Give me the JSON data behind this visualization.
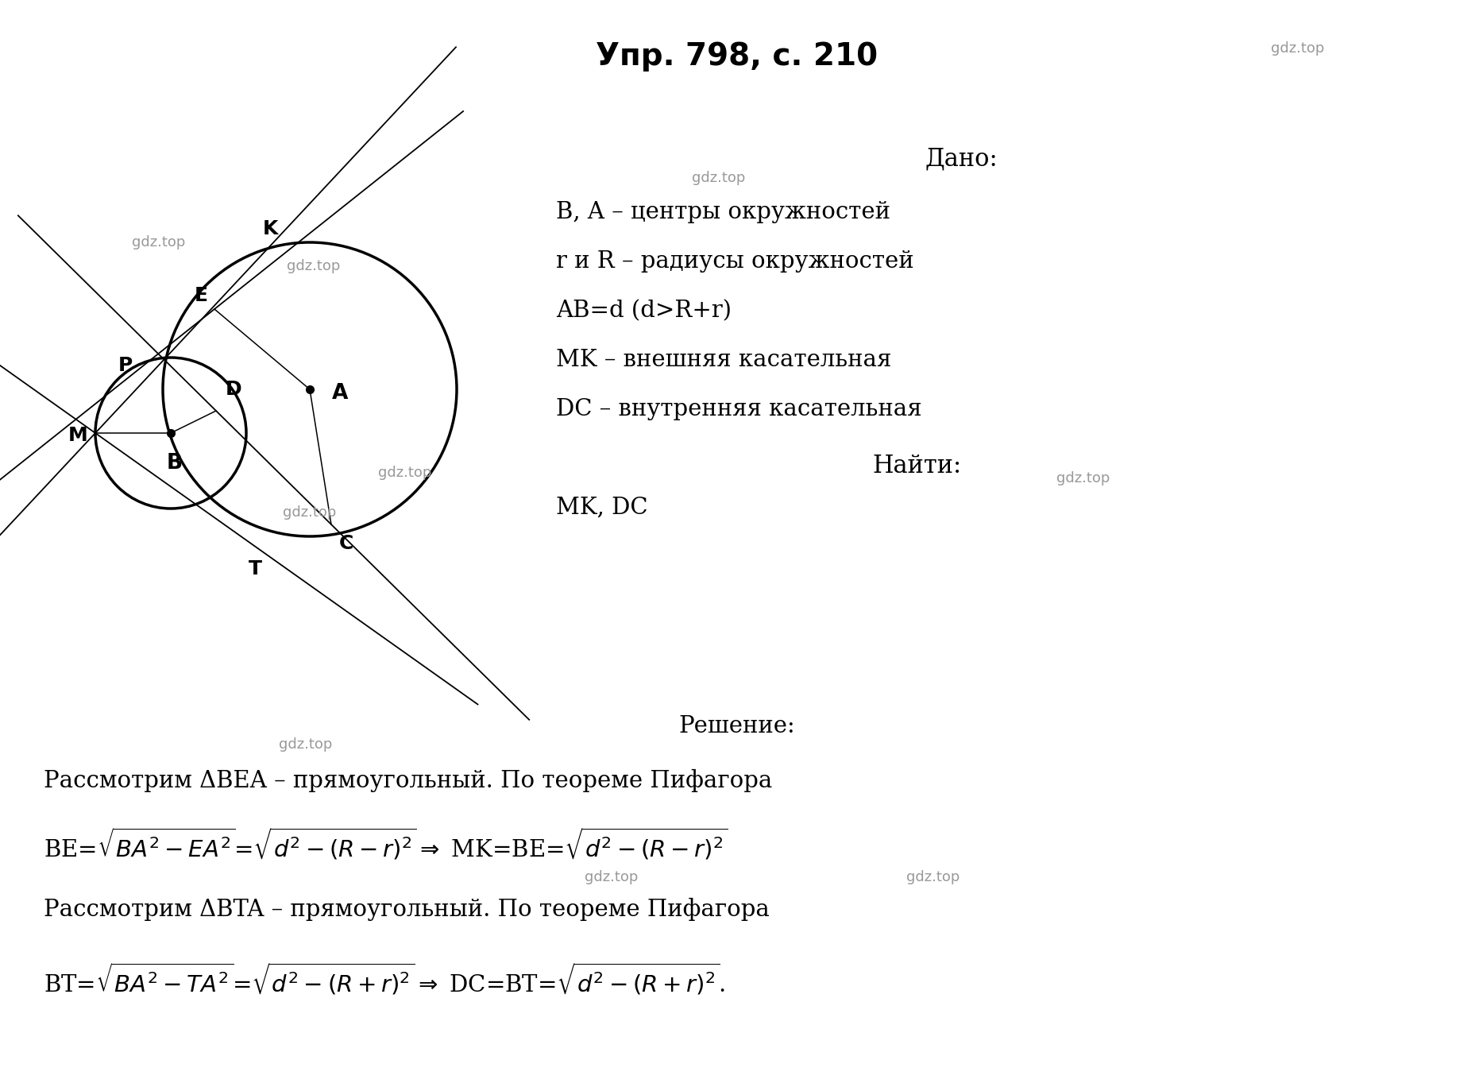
{
  "title": "Упр. 798, с. 210",
  "title_fontsize": 28,
  "watermark": "gdz.top",
  "watermark_color": "#999999",
  "watermark_fontsize": 13,
  "bg_color": "#ffffff",
  "text_color": "#000000",
  "dado_title": "Дано:",
  "dado_lines": [
    "B, A – центры окружностей",
    "r и R – радиусы окружностей",
    "AB=d (d>R+r)",
    "MK – внешняя касательная",
    "DC – внутренняя касательная"
  ],
  "naiti_title": "Найти:",
  "naiti_lines": [
    "MK, DC"
  ],
  "reshenie_title": "Решение:",
  "fig_w": 18.57,
  "fig_h": 13.68
}
